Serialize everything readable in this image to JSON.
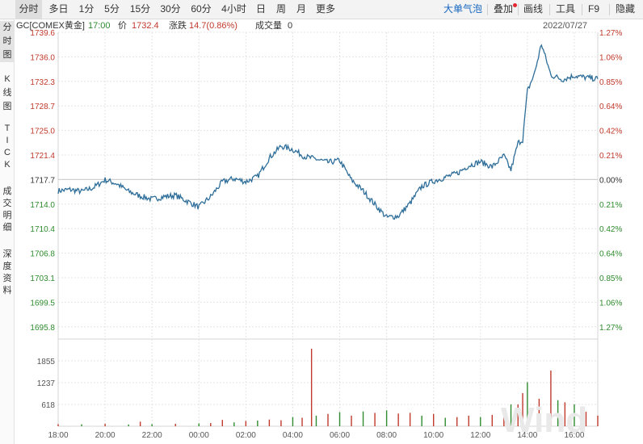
{
  "toolbar": {
    "tabs": [
      {
        "label": "分时",
        "active": true
      },
      {
        "label": "多日"
      },
      {
        "label": "1分"
      },
      {
        "label": "5分"
      },
      {
        "label": "15分"
      },
      {
        "label": "30分"
      },
      {
        "label": "60分"
      },
      {
        "label": "4小时"
      },
      {
        "label": "日"
      },
      {
        "label": "周"
      },
      {
        "label": "月"
      },
      {
        "label": "更多"
      }
    ],
    "right": [
      {
        "label": "大单气泡",
        "color": "#1565c0"
      },
      {
        "label": "叠加",
        "dot": true
      },
      {
        "label": "画线"
      },
      {
        "label": "工具"
      },
      {
        "label": "F9"
      },
      {
        "label": "隐藏"
      }
    ]
  },
  "sidebar": {
    "tabs": [
      {
        "label": "分时图",
        "active": true
      },
      {
        "label": "K线图"
      },
      {
        "label": "TICK"
      },
      {
        "label": "成交明细"
      },
      {
        "label": "深度资料"
      }
    ]
  },
  "infobar": {
    "symbol": "GC[COMEX黄金]",
    "time": "17:00",
    "price_label": "价",
    "price": "1732.4",
    "change_label": "涨跌",
    "change": "14.7(0.86%)",
    "volume_label": "成交量",
    "volume": "0",
    "date": "2022/07/27"
  },
  "watermark": "Wind",
  "colors": {
    "price_line": "#2e6e99",
    "up": "#c0392b",
    "down": "#2e8b2e",
    "grid": "#e4e4e4",
    "ref": "#cfcfcf"
  },
  "chart_data": {
    "type": "line",
    "title": "",
    "ylim": [
      1692.2,
      1739.6
    ],
    "ref_price": 1717.7,
    "y_ticks_left": [
      "1739.6",
      "1736.0",
      "1732.3",
      "1728.7",
      "1725.0",
      "1721.4",
      "1717.7",
      "1714.0",
      "1710.4",
      "1706.8",
      "1703.1",
      "1699.5",
      "1695.8"
    ],
    "y_ticks_right": [
      "1.27%",
      "1.06%",
      "0.85%",
      "0.64%",
      "0.42%",
      "0.21%",
      "0.00%",
      "0.21%",
      "0.42%",
      "0.64%",
      "0.85%",
      "1.06%",
      "1.27%"
    ],
    "x_ticks": [
      "18:00",
      "20:00",
      "22:00",
      "00:00",
      "02:00",
      "04:00",
      "06:00",
      "08:00",
      "10:00",
      "12:00",
      "14:00",
      "16:00"
    ],
    "x_tick_hours": [
      0,
      2,
      4,
      6,
      8,
      10,
      12,
      14,
      16,
      18,
      20,
      22
    ],
    "x_range_hours": [
      0,
      23
    ],
    "price": {
      "x": [
        0,
        0.5,
        1,
        1.5,
        2,
        2.5,
        3,
        3.5,
        4,
        4.5,
        5,
        5.5,
        6,
        6.5,
        7,
        7.5,
        8,
        8.5,
        9,
        9.5,
        10,
        10.5,
        11,
        11.5,
        12,
        12.5,
        13,
        13.5,
        14,
        14.5,
        15,
        15.5,
        16,
        16.5,
        17,
        17.5,
        18,
        18.5,
        19,
        19.3,
        19.6,
        19.8,
        20,
        20.3,
        20.6,
        21,
        21.5,
        22,
        22.5,
        23
      ],
      "values": [
        1715.1,
        1715.3,
        1715.0,
        1715.6,
        1716.8,
        1716.2,
        1715.0,
        1714.3,
        1713.8,
        1714.2,
        1714.4,
        1713.5,
        1712.6,
        1714.2,
        1716.5,
        1717.0,
        1716.5,
        1717.3,
        1720.2,
        1722.0,
        1721.5,
        1720.4,
        1720.0,
        1719.5,
        1719.8,
        1716.8,
        1715.1,
        1713.0,
        1711.0,
        1711.2,
        1713.2,
        1715.8,
        1716.6,
        1717.2,
        1717.8,
        1719.0,
        1719.6,
        1718.8,
        1720.5,
        1718.3,
        1722.5,
        1723.0,
        1730.5,
        1733.2,
        1737.8,
        1733.0,
        1732.3,
        1732.9,
        1732.6,
        1732.4
      ]
    },
    "volume": {
      "ylim": [
        0,
        2473
      ],
      "y_ticks": [
        "1855",
        "1237",
        "618"
      ],
      "x": [
        0,
        1,
        2,
        3,
        3.5,
        4,
        5,
        6,
        6.5,
        7,
        7.5,
        8,
        8.5,
        9,
        9.5,
        10,
        10.4,
        10.8,
        11,
        11.5,
        12,
        12.5,
        13,
        13.5,
        14,
        14.5,
        15,
        15.5,
        16,
        16.5,
        17,
        17.5,
        18,
        18.5,
        19,
        19.3,
        19.6,
        19.8,
        20,
        20.5,
        21,
        21.3,
        21.6,
        22,
        22.5,
        23
      ],
      "values": [
        60,
        55,
        70,
        50,
        130,
        60,
        70,
        80,
        90,
        180,
        110,
        150,
        160,
        190,
        170,
        260,
        240,
        2200,
        300,
        350,
        400,
        300,
        420,
        380,
        450,
        360,
        380,
        300,
        350,
        240,
        260,
        300,
        260,
        320,
        400,
        620,
        620,
        940,
        1250,
        780,
        1580,
        740,
        680,
        620,
        410,
        300
      ],
      "up": [
        true,
        false,
        true,
        false,
        true,
        false,
        true,
        false,
        true,
        true,
        false,
        true,
        false,
        true,
        true,
        false,
        true,
        true,
        false,
        true,
        false,
        true,
        false,
        true,
        false,
        true,
        true,
        false,
        true,
        false,
        true,
        true,
        false,
        true,
        true,
        false,
        true,
        true,
        false,
        true,
        true,
        false,
        true,
        false,
        true,
        true
      ]
    }
  }
}
